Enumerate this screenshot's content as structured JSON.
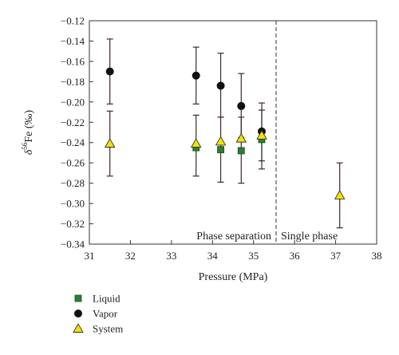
{
  "chart_data": {
    "type": "scatter",
    "xlabel": "Pressure (MPa)",
    "ylabel_base": "δ",
    "ylabel_sup": "56",
    "ylabel_tail": "Fe (‰)",
    "xlim": [
      31,
      38
    ],
    "ylim": [
      -0.34,
      -0.12
    ],
    "x_ticks": [
      31,
      32,
      33,
      34,
      35,
      36,
      37,
      38
    ],
    "y_ticks": [
      -0.34,
      -0.32,
      -0.3,
      -0.28,
      -0.26,
      -0.24,
      -0.22,
      -0.2,
      -0.18,
      -0.16,
      -0.14,
      -0.12
    ],
    "grid": false,
    "legend_placement": "bottom-left",
    "series": [
      {
        "name": "Liquid",
        "marker": "square",
        "color": "#2e7d32",
        "points": [
          {
            "x": 33.6,
            "y": -0.245
          },
          {
            "x": 34.2,
            "y": -0.247
          },
          {
            "x": 34.7,
            "y": -0.248
          },
          {
            "x": 35.2,
            "y": -0.237
          }
        ]
      },
      {
        "name": "Vapor",
        "marker": "circle",
        "color": "#111111",
        "points": [
          {
            "x": 31.5,
            "y": -0.17,
            "err_low": -0.202,
            "err_high": -0.138
          },
          {
            "x": 33.6,
            "y": -0.174,
            "err_low": -0.202,
            "err_high": -0.146
          },
          {
            "x": 34.2,
            "y": -0.184,
            "err_low": -0.215,
            "err_high": -0.152
          },
          {
            "x": 34.7,
            "y": -0.204,
            "err_low": -0.235,
            "err_high": -0.172
          },
          {
            "x": 35.2,
            "y": -0.229,
            "err_low": -0.258,
            "err_high": -0.201
          }
        ]
      },
      {
        "name": "System",
        "marker": "triangle",
        "color": "#f5e200",
        "points": [
          {
            "x": 31.5,
            "y": -0.241,
            "err_low": -0.273,
            "err_high": -0.209
          },
          {
            "x": 33.6,
            "y": -0.241,
            "err_low": -0.273,
            "err_high": -0.213
          },
          {
            "x": 34.2,
            "y": -0.239,
            "err_low": -0.279,
            "err_high": -0.215
          },
          {
            "x": 34.7,
            "y": -0.236,
            "err_low": -0.28,
            "err_high": -0.215
          },
          {
            "x": 35.2,
            "y": -0.233,
            "err_low": -0.266,
            "err_high": -0.208
          },
          {
            "x": 37.1,
            "y": -0.292,
            "err_low": -0.324,
            "err_high": -0.26
          }
        ]
      }
    ],
    "divider_x": 35.55,
    "annotations": [
      {
        "text": "Phase separation"
      },
      {
        "text": "Single phase"
      }
    ]
  }
}
